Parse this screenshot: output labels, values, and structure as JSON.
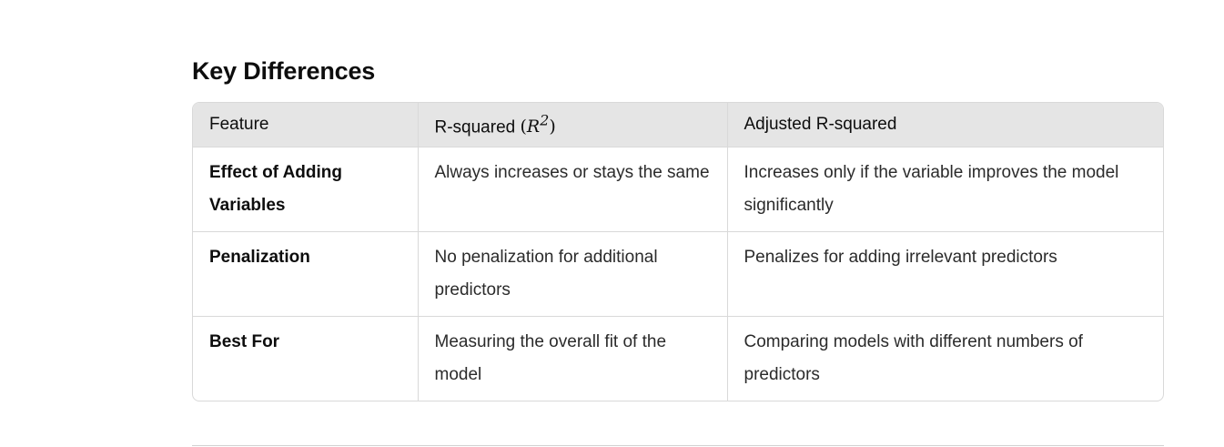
{
  "section": {
    "title": "Key Differences"
  },
  "table": {
    "headers": {
      "feature": "Feature",
      "r_squared_prefix": "R-squared ",
      "r_squared_math_base": "R",
      "r_squared_math_exp": "2",
      "adjusted": "Adjusted R-squared"
    },
    "rows": [
      {
        "feature": "Effect of Adding Variables",
        "r_squared": "Always increases or stays the same",
        "adjusted": "Increases only if the variable improves the model significantly"
      },
      {
        "feature": "Penalization",
        "r_squared": "No penalization for additional predictors",
        "adjusted": "Penalizes for adding irrelevant predictors"
      },
      {
        "feature": "Best For",
        "r_squared": "Measuring the overall fit of the model",
        "adjusted": "Comparing models with different numbers of predictors"
      }
    ]
  }
}
